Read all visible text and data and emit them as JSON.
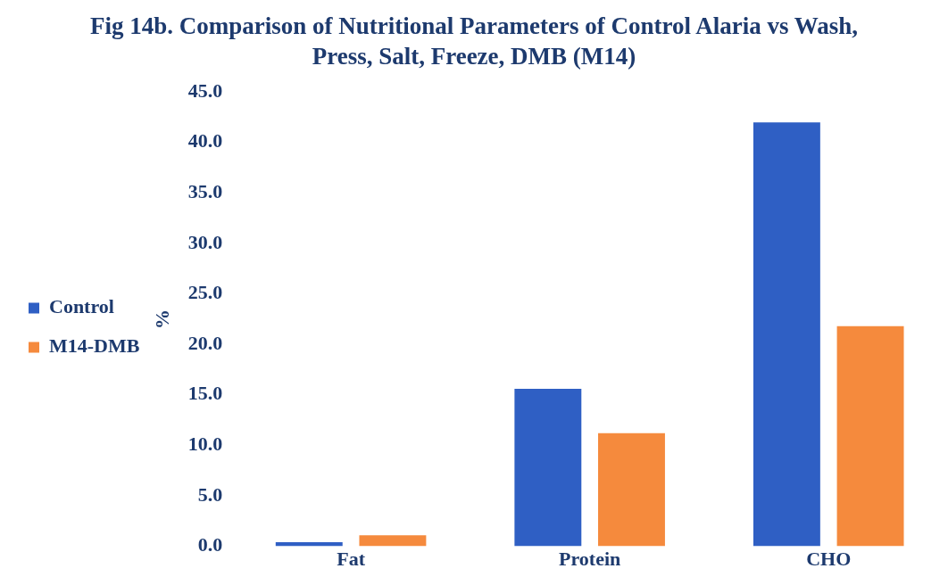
{
  "chart_data": {
    "type": "bar",
    "title": "Fig 14b. Comparison of Nutritional Parameters of Control Alaria vs Wash, Press, Salt, Freeze, DMB (M14)",
    "ylabel": "%",
    "categories": [
      "Fat",
      "Protein",
      "CHO"
    ],
    "series": [
      {
        "name": "Control",
        "color": "#2f5fc4",
        "values": [
          0.4,
          15.6,
          42.0
        ]
      },
      {
        "name": "M14-DMB",
        "color": "#f58a3d",
        "values": [
          1.1,
          11.2,
          21.8
        ]
      }
    ],
    "ylim": [
      0,
      45
    ],
    "yticks": [
      {
        "value": 0,
        "label": "0.0"
      },
      {
        "value": 5,
        "label": "5.0"
      },
      {
        "value": 10,
        "label": "10.0"
      },
      {
        "value": 15,
        "label": "15.0"
      },
      {
        "value": 20,
        "label": "20.0"
      },
      {
        "value": 25,
        "label": "25.0"
      },
      {
        "value": 30,
        "label": "30.0"
      },
      {
        "value": 35,
        "label": "35.0"
      },
      {
        "value": 40,
        "label": "40.0"
      },
      {
        "value": 45,
        "label": "45.0"
      }
    ],
    "grid": false,
    "legend": "left"
  }
}
